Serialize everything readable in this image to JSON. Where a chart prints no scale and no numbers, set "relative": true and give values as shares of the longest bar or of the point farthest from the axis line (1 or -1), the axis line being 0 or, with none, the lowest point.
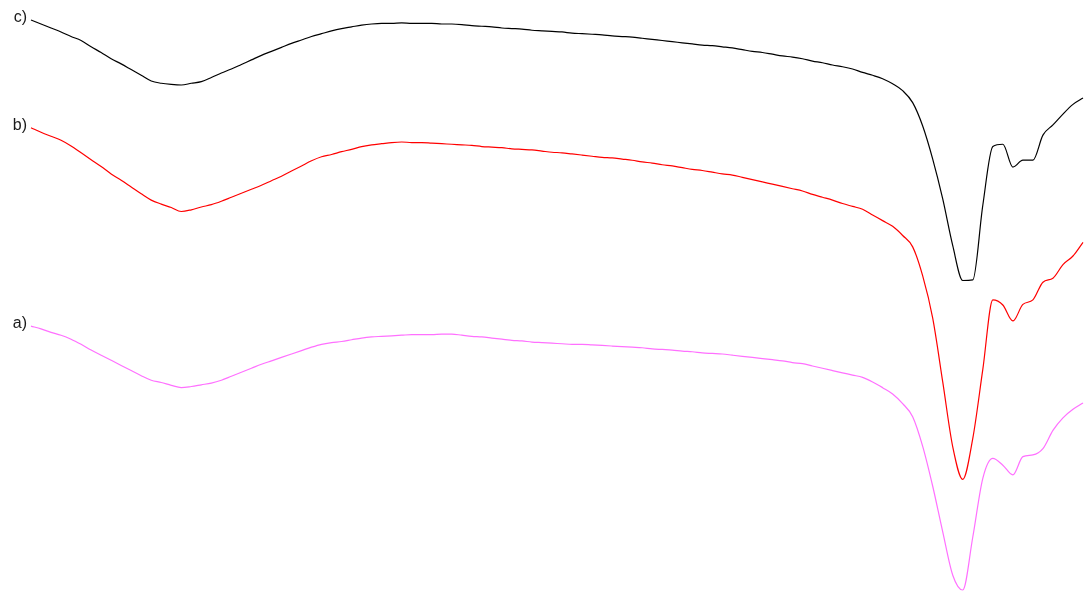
{
  "chart_data": {
    "type": "line",
    "relative": true,
    "tick_labels": false,
    "legend": false,
    "categories": [
      null,
      null,
      null,
      null,
      null,
      null,
      null,
      null,
      null,
      null,
      null,
      null,
      null,
      null,
      null,
      null,
      null,
      null,
      null,
      null,
      null,
      null,
      null,
      null,
      null,
      null,
      null,
      null,
      null,
      null,
      null,
      null,
      null,
      null,
      null,
      null,
      null,
      null,
      null,
      null,
      null,
      null,
      null,
      null,
      null,
      null,
      null,
      null,
      null,
      null,
      null,
      null,
      null,
      null,
      null,
      null,
      null,
      null,
      null,
      null,
      null,
      null,
      null,
      null,
      null,
      null,
      null,
      null,
      null,
      null,
      null,
      null,
      null,
      null,
      null,
      null,
      null,
      null,
      null,
      null,
      null,
      null,
      null,
      null,
      null,
      null,
      null,
      null,
      null,
      null,
      null,
      null,
      null,
      null,
      null,
      null,
      null,
      null,
      null,
      null,
      null,
      null,
      null,
      null,
      null,
      null
    ],
    "series": [
      {
        "name": "a)",
        "color": "#ff70ff",
        "values": [
          0.463,
          0.458,
          0.452,
          0.447,
          0.44,
          0.431,
          0.421,
          0.412,
          0.403,
          0.394,
          0.385,
          0.376,
          0.368,
          0.364,
          0.359,
          0.355,
          0.357,
          0.36,
          0.363,
          0.368,
          0.375,
          0.382,
          0.389,
          0.396,
          0.402,
          0.408,
          0.414,
          0.42,
          0.426,
          0.431,
          0.434,
          0.436,
          0.439,
          0.442,
          0.444,
          0.445,
          0.446,
          0.447,
          0.448,
          0.448,
          0.448,
          0.449,
          0.449,
          0.447,
          0.445,
          0.444,
          0.442,
          0.44,
          0.438,
          0.437,
          0.435,
          0.434,
          0.433,
          0.432,
          0.431,
          0.431,
          0.43,
          0.429,
          0.428,
          0.427,
          0.426,
          0.425,
          0.423,
          0.422,
          0.421,
          0.419,
          0.418,
          0.416,
          0.415,
          0.414,
          0.412,
          0.41,
          0.408,
          0.406,
          0.404,
          0.402,
          0.399,
          0.397,
          0.393,
          0.389,
          0.385,
          0.381,
          0.377,
          0.373,
          0.365,
          0.355,
          0.344,
          0.327,
          0.304,
          0.252,
          0.182,
          0.102,
          0.026,
          0,
          0.093,
          0.196,
          0.231,
          0.219,
          0.202,
          0.234,
          0.237,
          0.248,
          0.28,
          0.302,
          0.317,
          0.328
        ]
      },
      {
        "name": "b)",
        "color": "#ff0000",
        "values": [
          0.811,
          0.803,
          0.796,
          0.789,
          0.779,
          0.767,
          0.755,
          0.743,
          0.73,
          0.719,
          0.707,
          0.695,
          0.684,
          0.677,
          0.671,
          0.664,
          0.667,
          0.672,
          0.676,
          0.682,
          0.689,
          0.696,
          0.703,
          0.71,
          0.718,
          0.726,
          0.735,
          0.744,
          0.753,
          0.76,
          0.764,
          0.769,
          0.773,
          0.778,
          0.781,
          0.783,
          0.785,
          0.786,
          0.785,
          0.785,
          0.784,
          0.783,
          0.782,
          0.781,
          0.78,
          0.778,
          0.777,
          0.776,
          0.774,
          0.773,
          0.772,
          0.77,
          0.768,
          0.767,
          0.765,
          0.763,
          0.761,
          0.759,
          0.758,
          0.756,
          0.754,
          0.751,
          0.749,
          0.746,
          0.744,
          0.741,
          0.738,
          0.736,
          0.733,
          0.73,
          0.728,
          0.724,
          0.72,
          0.716,
          0.712,
          0.708,
          0.704,
          0.7,
          0.694,
          0.689,
          0.684,
          0.678,
          0.673,
          0.668,
          0.658,
          0.648,
          0.638,
          0.622,
          0.602,
          0.551,
          0.477,
          0.365,
          0.251,
          0.194,
          0.266,
          0.387,
          0.509,
          0.5,
          0.472,
          0.501,
          0.509,
          0.54,
          0.547,
          0.571,
          0.586,
          0.61
        ]
      },
      {
        "name": "c)",
        "color": "#000000",
        "values": [
          1.0,
          0.993,
          0.986,
          0.979,
          0.971,
          0.964,
          0.953,
          0.943,
          0.932,
          0.923,
          0.913,
          0.903,
          0.893,
          0.889,
          0.887,
          0.886,
          0.889,
          0.892,
          0.899,
          0.907,
          0.914,
          0.922,
          0.93,
          0.938,
          0.945,
          0.952,
          0.959,
          0.965,
          0.971,
          0.976,
          0.981,
          0.985,
          0.988,
          0.991,
          0.993,
          0.994,
          0.994,
          0.995,
          0.994,
          0.994,
          0.994,
          0.993,
          0.993,
          0.992,
          0.99,
          0.989,
          0.988,
          0.986,
          0.985,
          0.984,
          0.982,
          0.981,
          0.98,
          0.979,
          0.977,
          0.976,
          0.975,
          0.974,
          0.972,
          0.971,
          0.97,
          0.968,
          0.966,
          0.964,
          0.962,
          0.96,
          0.958,
          0.956,
          0.955,
          0.953,
          0.951,
          0.948,
          0.945,
          0.943,
          0.94,
          0.937,
          0.935,
          0.932,
          0.928,
          0.925,
          0.921,
          0.918,
          0.914,
          0.908,
          0.903,
          0.897,
          0.888,
          0.876,
          0.855,
          0.814,
          0.756,
          0.686,
          0.604,
          0.543,
          0.544,
          0.675,
          0.778,
          0.782,
          0.742,
          0.754,
          0.754,
          0.798,
          0.816,
          0.835,
          0.852,
          0.863
        ]
      }
    ]
  }
}
